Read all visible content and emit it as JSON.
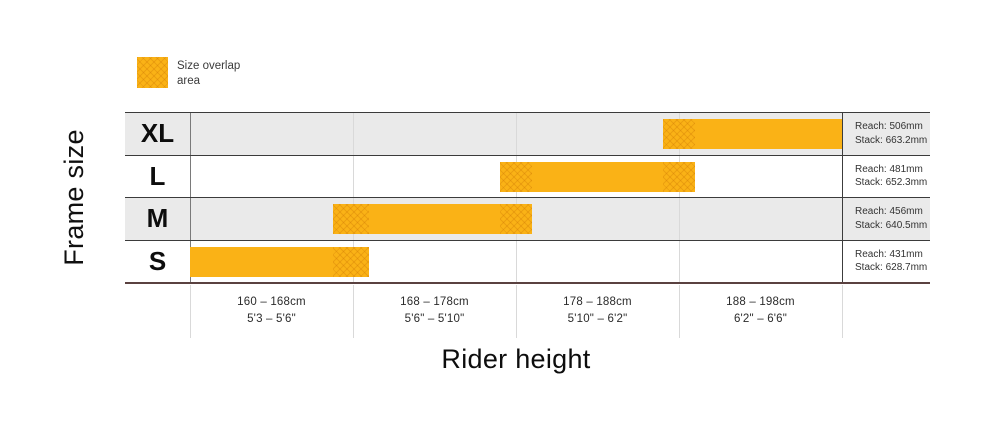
{
  "legend": {
    "label": "Size overlap\narea"
  },
  "y_axis_title": "Frame size",
  "x_axis_title": "Rider height",
  "colors": {
    "bar": "#FAB216",
    "overlap_hatch": "rgba(200,112,0,0.28)",
    "row_shaded": "#EAEAEA",
    "grid": "#D9D9D9",
    "row_line": "#3B3B3B",
    "baseline": "#5A4140"
  },
  "chart_data": {
    "type": "bar",
    "orientation": "horizontal",
    "title": "",
    "xlabel": "Rider height",
    "ylabel": "Frame size",
    "x_range_cm": [
      160,
      198
    ],
    "legend_entries": [
      "Size overlap area"
    ],
    "x_segments": [
      {
        "cm": "160 – 168cm",
        "ft": "5'3 – 5'6\"",
        "from": 160,
        "to": 168
      },
      {
        "cm": "168 – 178cm",
        "ft": "5'6\" – 5'10\"",
        "from": 168,
        "to": 178
      },
      {
        "cm": "178 – 188cm",
        "ft": "5'10\" – 6'2\"",
        "from": 178,
        "to": 188
      },
      {
        "cm": "188 – 198cm",
        "ft": "6'2\" – 6'6\"",
        "from": 188,
        "to": 198
      }
    ],
    "rows": [
      {
        "size": "XL",
        "height_range_cm": [
          187,
          198
        ],
        "reach": "Reach: 506mm",
        "stack": "Stack: 663.2mm",
        "reach_mm": 506,
        "stack_mm": 663.2,
        "shaded": true
      },
      {
        "size": "L",
        "height_range_cm": [
          177,
          189
        ],
        "reach": "Reach: 481mm",
        "stack": "Stack: 652.3mm",
        "reach_mm": 481,
        "stack_mm": 652.3,
        "shaded": false
      },
      {
        "size": "M",
        "height_range_cm": [
          167,
          179
        ],
        "reach": "Reach: 456mm",
        "stack": "Stack: 640.5mm",
        "reach_mm": 456,
        "stack_mm": 640.5,
        "shaded": true
      },
      {
        "size": "S",
        "height_range_cm": [
          160,
          169
        ],
        "reach": "Reach: 431mm",
        "stack": "Stack: 628.7mm",
        "reach_mm": 431,
        "stack_mm": 628.7,
        "shaded": false
      }
    ]
  }
}
